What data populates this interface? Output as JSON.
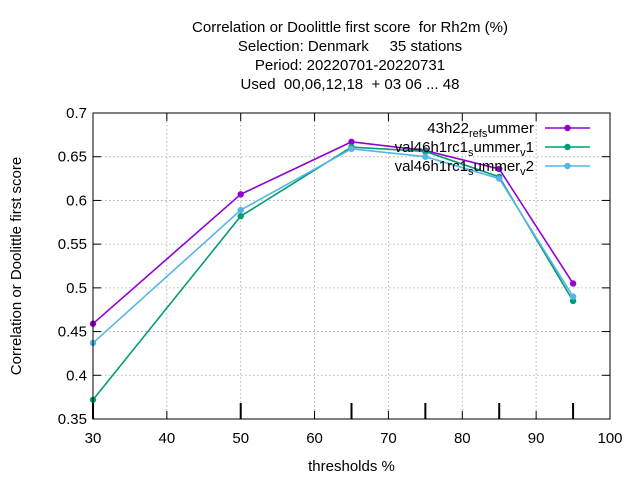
{
  "chart_data": {
    "type": "line",
    "title_lines": [
      "Correlation or Doolittle first score  for Rh2m (%)",
      "Selection: Denmark     35 stations",
      "Period: 20220701-20220731",
      "Used  00,06,12,18  + 03 06 ... 48"
    ],
    "xlabel": "thresholds %",
    "ylabel": "Correlation or Doolittle first score",
    "xlim": [
      30,
      100
    ],
    "ylim": [
      0.35,
      0.7
    ],
    "x_ticks": [
      30,
      40,
      50,
      60,
      70,
      80,
      90,
      100
    ],
    "x_tick_labels": [
      "30",
      "40",
      "50",
      "60",
      "70",
      "80",
      "90",
      "100"
    ],
    "y_ticks": [
      0.35,
      0.4,
      0.45,
      0.5,
      0.55,
      0.6,
      0.65,
      0.7
    ],
    "y_tick_labels": [
      "0.35",
      "0.4",
      "0.45",
      "0.5",
      "0.55",
      "0.6",
      "0.65",
      "0.7"
    ],
    "grid": true,
    "legend_position": "top-right",
    "x": [
      30,
      50,
      65,
      75,
      85,
      95
    ],
    "series": [
      {
        "name": "43h22_ref_summer",
        "color": "#9400d3",
        "values": [
          0.459,
          0.607,
          0.667,
          0.657,
          0.636,
          0.505
        ]
      },
      {
        "name": "val46h1rc1_summer_v1",
        "color": "#009e73",
        "values": [
          0.372,
          0.582,
          0.661,
          0.656,
          0.627,
          0.485
        ]
      },
      {
        "name": "val46h1rc1_summer_v2",
        "color": "#56b4e9",
        "values": [
          0.437,
          0.589,
          0.659,
          0.65,
          0.625,
          0.49
        ]
      }
    ],
    "legend_labels": [
      {
        "main": "43h22",
        "parts": [
          [
            "sub",
            "ref"
          ],
          [
            "sub",
            "s"
          ],
          [
            "base",
            "ummer"
          ]
        ]
      },
      {
        "main": "val46h1rc1",
        "parts": [
          [
            "sub",
            "s"
          ],
          [
            "base",
            "ummer"
          ],
          [
            "sub",
            "v"
          ],
          [
            "base",
            "1"
          ]
        ]
      },
      {
        "main": "val46h1rc1",
        "parts": [
          [
            "sub",
            "s"
          ],
          [
            "base",
            "ummer"
          ],
          [
            "sub",
            "v"
          ],
          [
            "base",
            "2"
          ]
        ]
      }
    ]
  }
}
